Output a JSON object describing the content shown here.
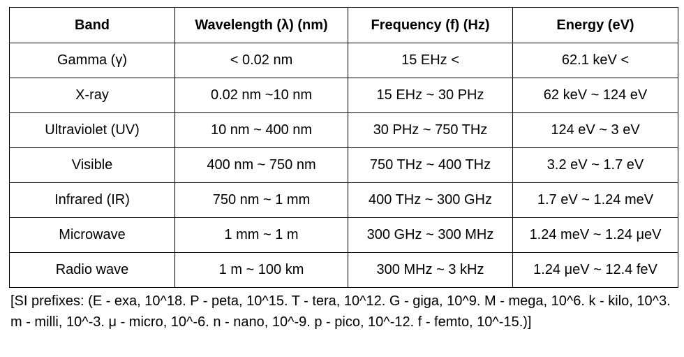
{
  "table": {
    "headers": [
      "Band",
      "Wavelength (λ) (nm)",
      "Frequency (f) (Hz)",
      "Energy (eV)"
    ],
    "rows": [
      [
        "Gamma (γ)",
        "< 0.02 nm",
        "15 EHz <",
        "62.1 keV <"
      ],
      [
        "X-ray",
        "0.02 nm ~10 nm",
        "15 EHz ~ 30 PHz",
        "62 keV ~ 124 eV"
      ],
      [
        "Ultraviolet (UV)",
        "10 nm ~ 400 nm",
        "30 PHz ~ 750 THz",
        "124 eV ~ 3 eV"
      ],
      [
        "Visible",
        "400 nm ~ 750 nm",
        "750 THz ~ 400 THz",
        "3.2 eV ~ 1.7 eV"
      ],
      [
        "Infrared (IR)",
        "750 nm ~ 1 mm",
        "400 THz ~ 300 GHz",
        "1.7 eV ~ 1.24 meV"
      ],
      [
        "Microwave",
        "1 mm ~ 1 m",
        "300 GHz ~ 300 MHz",
        "1.24 meV ~ 1.24 μeV"
      ],
      [
        "Radio wave",
        "1 m ~ 100 km",
        "300 MHz ~ 3 kHz",
        "1.24 μeV ~ 12.4 feV"
      ]
    ]
  },
  "footnote": "[SI prefixes: (E - exa, 10^18. P - peta, 10^15. T - tera, 10^12. G - giga, 10^9. M - mega, 10^6. k - kilo, 10^3. m - milli, 10^-3. μ - micro, 10^-6. n - nano, 10^-9. p - pico, 10^-12. f - femto, 10^-15.)]"
}
